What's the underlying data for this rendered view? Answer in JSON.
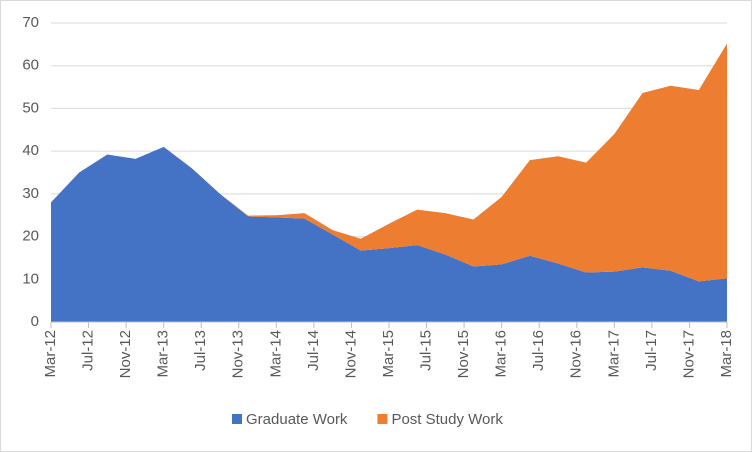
{
  "chart_data": {
    "type": "stacked_area",
    "x": [
      "2012-03",
      "2012-06",
      "2012-09",
      "2012-12",
      "2013-03",
      "2013-06",
      "2013-09",
      "2013-12",
      "2014-03",
      "2014-06",
      "2014-09",
      "2014-12",
      "2015-03",
      "2015-06",
      "2015-09",
      "2015-12",
      "2016-03",
      "2016-06",
      "2016-09",
      "2016-12",
      "2017-03",
      "2017-06",
      "2017-09",
      "2017-12",
      "2018-03"
    ],
    "series": [
      {
        "name": "Graduate Work",
        "color": "#4472c4",
        "values": [
          28,
          35,
          39.2,
          38.2,
          41,
          36,
          30,
          24.7,
          24.5,
          24.2,
          20.5,
          16.7,
          17.3,
          18,
          15.8,
          13,
          13.5,
          15.5,
          13.7,
          11.6,
          11.8,
          12.8,
          12,
          9.5,
          10.2
        ]
      },
      {
        "name": "Post Study Work",
        "color": "#ed7d31",
        "values": [
          0,
          0,
          0,
          0,
          0,
          0,
          0,
          0.2,
          0.5,
          1.3,
          1,
          2.8,
          5.7,
          8.3,
          9.7,
          11,
          15.8,
          22.4,
          25.1,
          25.7,
          32.2,
          40.8,
          43.3,
          44.8,
          55
        ]
      }
    ],
    "xlim": [
      "2012-03",
      "2018-03"
    ],
    "xticks": [
      {
        "value": "2012-03",
        "label": "Mar-12"
      },
      {
        "value": "2012-07",
        "label": "Jul-12"
      },
      {
        "value": "2012-11",
        "label": "Nov-12"
      },
      {
        "value": "2013-03",
        "label": "Mar-13"
      },
      {
        "value": "2013-07",
        "label": "Jul-13"
      },
      {
        "value": "2013-11",
        "label": "Nov-13"
      },
      {
        "value": "2014-03",
        "label": "Mar-14"
      },
      {
        "value": "2014-07",
        "label": "Jul-14"
      },
      {
        "value": "2014-11",
        "label": "Nov-14"
      },
      {
        "value": "2015-03",
        "label": "Mar-15"
      },
      {
        "value": "2015-07",
        "label": "Jul-15"
      },
      {
        "value": "2015-11",
        "label": "Nov-15"
      },
      {
        "value": "2016-03",
        "label": "Mar-16"
      },
      {
        "value": "2016-07",
        "label": "Jul-16"
      },
      {
        "value": "2016-11",
        "label": "Nov-16"
      },
      {
        "value": "2017-03",
        "label": "Mar-17"
      },
      {
        "value": "2017-07",
        "label": "Jul-17"
      },
      {
        "value": "2017-11",
        "label": "Nov-17"
      },
      {
        "value": "2018-03",
        "label": "Mar-18"
      }
    ],
    "ylim": [
      0,
      70
    ],
    "yticks": [
      0,
      10,
      20,
      30,
      40,
      50,
      60,
      70
    ],
    "grid": true,
    "legend": "bottom"
  }
}
